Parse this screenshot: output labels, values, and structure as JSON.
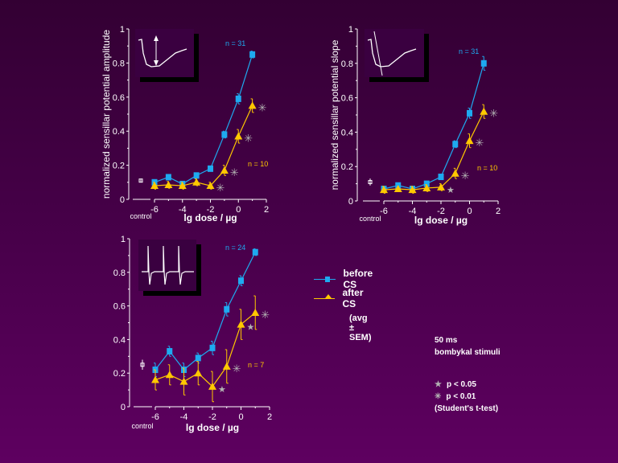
{
  "colors": {
    "before": "#1eaaf0",
    "after": "#ffc800",
    "sig": "#b4b4b4",
    "axis": "#ffffff",
    "inset_bg": "#3a0040",
    "inset_shadow": "#000000"
  },
  "legend": {
    "before_label": "before CS",
    "after_label": "after CS",
    "avg_note": "(avg ± SEM)",
    "stim_line1": "50 ms",
    "stim_line2": "bombykal stimuli",
    "p05": "p < 0.05",
    "p01": "p < 0.01",
    "test": "(Student's t-test)"
  },
  "chart_data": [
    {
      "type": "line",
      "title": "",
      "xlabel": "lg dose / µg",
      "ylabel": "normalized sensillar potential amplitude",
      "control_label": "control",
      "xlim": [
        -7.5,
        2
      ],
      "ylim": [
        0,
        1
      ],
      "xticks": [
        -6,
        -4,
        -2,
        0,
        2
      ],
      "yticks": [
        0,
        0.2,
        0.4,
        0.6,
        0.8,
        1
      ],
      "ytick_labels": [
        "0",
        "0.2",
        "0.4",
        "0.6",
        "0.8",
        "1"
      ],
      "x": [
        -6,
        -5,
        -4,
        -3,
        -2,
        -1,
        0,
        1
      ],
      "control": {
        "value": 0.11,
        "err": 0.01
      },
      "inset": "sensillar-potential-trace-amplitude",
      "series": [
        {
          "name": "before CS",
          "n_label": "n = 31",
          "values": [
            0.1,
            0.13,
            0.09,
            0.14,
            0.18,
            0.38,
            0.59,
            0.85
          ],
          "err": [
            0.01,
            0.01,
            0.01,
            0.01,
            0.01,
            0.02,
            0.03,
            0.02
          ]
        },
        {
          "name": "after CS",
          "n_label": "n = 10",
          "values": [
            0.08,
            0.085,
            0.08,
            0.1,
            0.08,
            0.17,
            0.37,
            0.55
          ],
          "err": [
            0.02,
            0.02,
            0.02,
            0.02,
            0.02,
            0.03,
            0.04,
            0.04
          ],
          "significance": [
            null,
            null,
            null,
            null,
            "p<0.01",
            "p<0.01",
            "p<0.01",
            "p<0.01"
          ]
        }
      ]
    },
    {
      "type": "line",
      "title": "",
      "xlabel": "lg dose / µg",
      "ylabel": "normalized sensillar potential slope",
      "control_label": "control",
      "xlim": [
        -7.5,
        2
      ],
      "ylim": [
        0,
        1
      ],
      "xticks": [
        -6,
        -4,
        -2,
        0,
        2
      ],
      "yticks": [
        0,
        0.2,
        0.4,
        0.6,
        0.8,
        1
      ],
      "ytick_labels": [
        "0",
        "0.2",
        "0.4",
        "0.6",
        "0.8",
        "1"
      ],
      "x": [
        -6,
        -5,
        -4,
        -3,
        -2,
        -1,
        0,
        1
      ],
      "control": {
        "value": 0.11,
        "err": 0.02
      },
      "inset": "sensillar-potential-trace-slope",
      "series": [
        {
          "name": "before CS",
          "n_label": "n = 31",
          "values": [
            0.07,
            0.09,
            0.07,
            0.1,
            0.14,
            0.33,
            0.51,
            0.8
          ],
          "err": [
            0.01,
            0.01,
            0.01,
            0.01,
            0.01,
            0.02,
            0.03,
            0.04
          ]
        },
        {
          "name": "after CS",
          "n_label": "n = 10",
          "values": [
            0.065,
            0.07,
            0.065,
            0.075,
            0.08,
            0.16,
            0.35,
            0.52
          ],
          "err": [
            0.02,
            0.01,
            0.02,
            0.02,
            0.02,
            0.03,
            0.04,
            0.04
          ],
          "significance": [
            null,
            null,
            null,
            null,
            "p<0.05",
            "p<0.01",
            "p<0.01",
            "p<0.01"
          ]
        }
      ]
    },
    {
      "type": "line",
      "title": "",
      "xlabel": "lg dose / µg",
      "ylabel": "",
      "control_label": "control",
      "xlim": [
        -7.5,
        2
      ],
      "ylim": [
        0,
        1
      ],
      "xticks": [
        -6,
        -4,
        -2,
        0,
        2
      ],
      "yticks": [
        0,
        0.2,
        0.4,
        0.6,
        0.8,
        1
      ],
      "ytick_labels": [
        "0",
        "0.2",
        "0.4",
        "0.6",
        "0.8",
        "1"
      ],
      "x": [
        -6,
        -5,
        -4,
        -3,
        -2,
        -1,
        0,
        1
      ],
      "control": {
        "value": 0.25,
        "err": 0.03
      },
      "inset": "spike-train-trace",
      "series": [
        {
          "name": "before CS",
          "n_label": "n = 24",
          "values": [
            0.22,
            0.33,
            0.22,
            0.29,
            0.35,
            0.58,
            0.75,
            0.92
          ],
          "err": [
            0.04,
            0.03,
            0.04,
            0.03,
            0.04,
            0.04,
            0.03,
            0.02
          ]
        },
        {
          "name": "after CS",
          "n_label": "n = 7",
          "values": [
            0.16,
            0.19,
            0.15,
            0.2,
            0.12,
            0.24,
            0.49,
            0.56
          ],
          "err": [
            0.06,
            0.06,
            0.08,
            0.07,
            0.09,
            0.1,
            0.09,
            0.1
          ],
          "significance": [
            null,
            null,
            null,
            null,
            "p<0.05",
            "p<0.01",
            "p<0.05",
            "p<0.01"
          ]
        }
      ]
    }
  ]
}
